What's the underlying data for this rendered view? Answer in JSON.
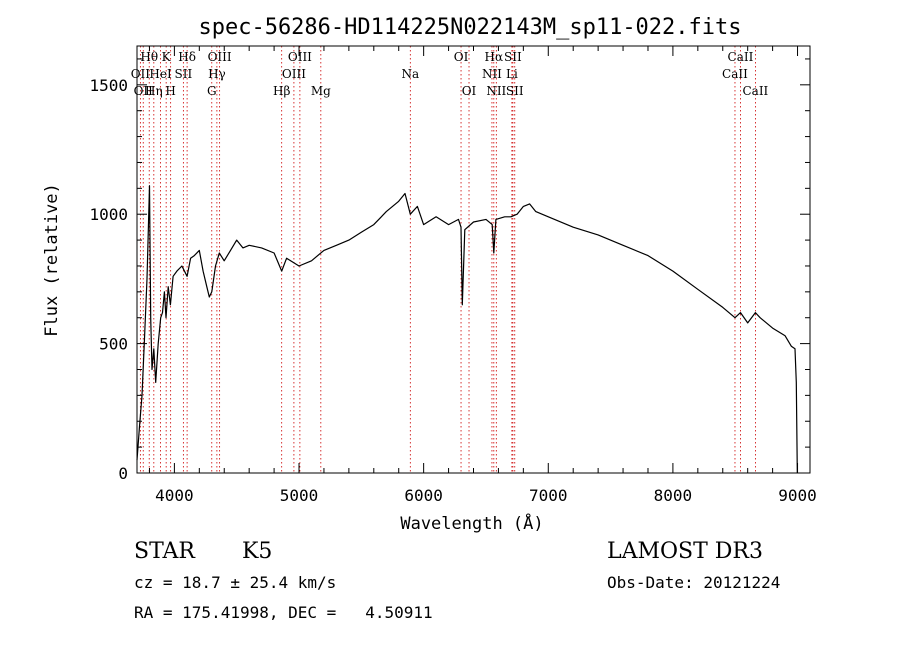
{
  "chart_data": {
    "type": "line",
    "title": "spec-56286-HD114225N022143M_sp11-022.fits",
    "xlabel": "Wavelength (Å)",
    "ylabel": "Flux (relative)",
    "xlim": [
      3700,
      9100
    ],
    "ylim": [
      0,
      1650
    ],
    "xticks": [
      4000,
      5000,
      6000,
      7000,
      8000,
      9000
    ],
    "yticks": [
      0,
      500,
      1000,
      1500
    ],
    "series": [
      {
        "name": "spectrum",
        "x": [
          3700,
          3720,
          3740,
          3760,
          3780,
          3800,
          3810,
          3820,
          3835,
          3850,
          3870,
          3890,
          3905,
          3920,
          3933,
          3950,
          3968,
          3990,
          4020,
          4060,
          4102,
          4130,
          4160,
          4200,
          4230,
          4260,
          4280,
          4300,
          4330,
          4360,
          4400,
          4450,
          4500,
          4550,
          4600,
          4700,
          4800,
          4861,
          4900,
          5000,
          5100,
          5200,
          5300,
          5400,
          5500,
          5600,
          5700,
          5800,
          5850,
          5893,
          5950,
          6000,
          6100,
          6200,
          6280,
          6300,
          6310,
          6330,
          6400,
          6500,
          6550,
          6563,
          6580,
          6650,
          6700,
          6750,
          6800,
          6850,
          6900,
          7000,
          7200,
          7400,
          7600,
          7800,
          8000,
          8200,
          8400,
          8498,
          8542,
          8600,
          8662,
          8700,
          8800,
          8900,
          8950,
          8980,
          8990,
          8998
        ],
        "y": [
          50,
          180,
          300,
          520,
          750,
          1110,
          600,
          400,
          480,
          350,
          500,
          600,
          620,
          700,
          600,
          720,
          650,
          760,
          780,
          800,
          760,
          830,
          840,
          860,
          780,
          720,
          680,
          700,
          800,
          850,
          820,
          860,
          900,
          870,
          880,
          870,
          850,
          780,
          830,
          800,
          820,
          860,
          880,
          900,
          930,
          960,
          1010,
          1050,
          1080,
          1000,
          1030,
          960,
          990,
          960,
          980,
          950,
          650,
          940,
          970,
          980,
          960,
          850,
          980,
          990,
          990,
          1000,
          1030,
          1040,
          1010,
          990,
          950,
          920,
          880,
          840,
          780,
          710,
          640,
          600,
          620,
          580,
          620,
          600,
          560,
          530,
          490,
          480,
          350,
          0
        ]
      }
    ],
    "spectral_lines": [
      {
        "wl": 3727,
        "labels": [
          "OII"
        ],
        "row": 2
      },
      {
        "wl": 3750,
        "labels": [
          "OII"
        ],
        "row": 3
      },
      {
        "wl": 3798,
        "labels": [
          "Hθ"
        ],
        "row": 1
      },
      {
        "wl": 3835,
        "labels": [
          "Hη"
        ],
        "row": 3
      },
      {
        "wl": 3889,
        "labels": [
          "HeI"
        ],
        "row": 2
      },
      {
        "wl": 3934,
        "labels": [
          "K"
        ],
        "row": 1
      },
      {
        "wl": 3970,
        "labels": [
          "H"
        ],
        "row": 3
      },
      {
        "wl": 4072,
        "labels": [
          "SII"
        ],
        "row": 2
      },
      {
        "wl": 4102,
        "labels": [
          "Hδ"
        ],
        "row": 1
      },
      {
        "wl": 4300,
        "labels": [
          "G"
        ],
        "row": 3
      },
      {
        "wl": 4341,
        "labels": [
          "Hγ"
        ],
        "row": 2
      },
      {
        "wl": 4363,
        "labels": [
          "OIII"
        ],
        "row": 1
      },
      {
        "wl": 4861,
        "labels": [
          "Hβ"
        ],
        "row": 3
      },
      {
        "wl": 4959,
        "labels": [
          "OIII"
        ],
        "row": 2
      },
      {
        "wl": 5007,
        "labels": [
          "OIII"
        ],
        "row": 1
      },
      {
        "wl": 5175,
        "labels": [
          "Mg"
        ],
        "row": 3
      },
      {
        "wl": 5893,
        "labels": [
          "Na"
        ],
        "row": 2
      },
      {
        "wl": 6300,
        "labels": [
          "OI"
        ],
        "row": 1
      },
      {
        "wl": 6364,
        "labels": [
          "OI"
        ],
        "row": 3
      },
      {
        "wl": 6548,
        "labels": [
          "NII"
        ],
        "row": 2
      },
      {
        "wl": 6563,
        "labels": [
          "Hα"
        ],
        "row": 1
      },
      {
        "wl": 6583,
        "labels": [
          "NII"
        ],
        "row": 3
      },
      {
        "wl": 6708,
        "labels": [
          "Li"
        ],
        "row": 2
      },
      {
        "wl": 6716,
        "labels": [
          "SII"
        ],
        "row": 1
      },
      {
        "wl": 6731,
        "labels": [
          "SII"
        ],
        "row": 3
      },
      {
        "wl": 8498,
        "labels": [
          "CaII"
        ],
        "row": 2
      },
      {
        "wl": 8542,
        "labels": [
          "CaII"
        ],
        "row": 1
      },
      {
        "wl": 8662,
        "labels": [
          "CaII"
        ],
        "row": 3
      }
    ]
  },
  "info": {
    "class_label": "STAR",
    "subclass_label": "K5",
    "survey": "LAMOST DR3",
    "redshift": "cz = 18.7 ± 25.4 km/s",
    "obs_date": "Obs-Date: 20121224",
    "coords": "RA = 175.41998, DEC =   4.50911"
  },
  "colors": {
    "line": "#000000",
    "marker": "#cc0000",
    "background": "#ffffff"
  }
}
